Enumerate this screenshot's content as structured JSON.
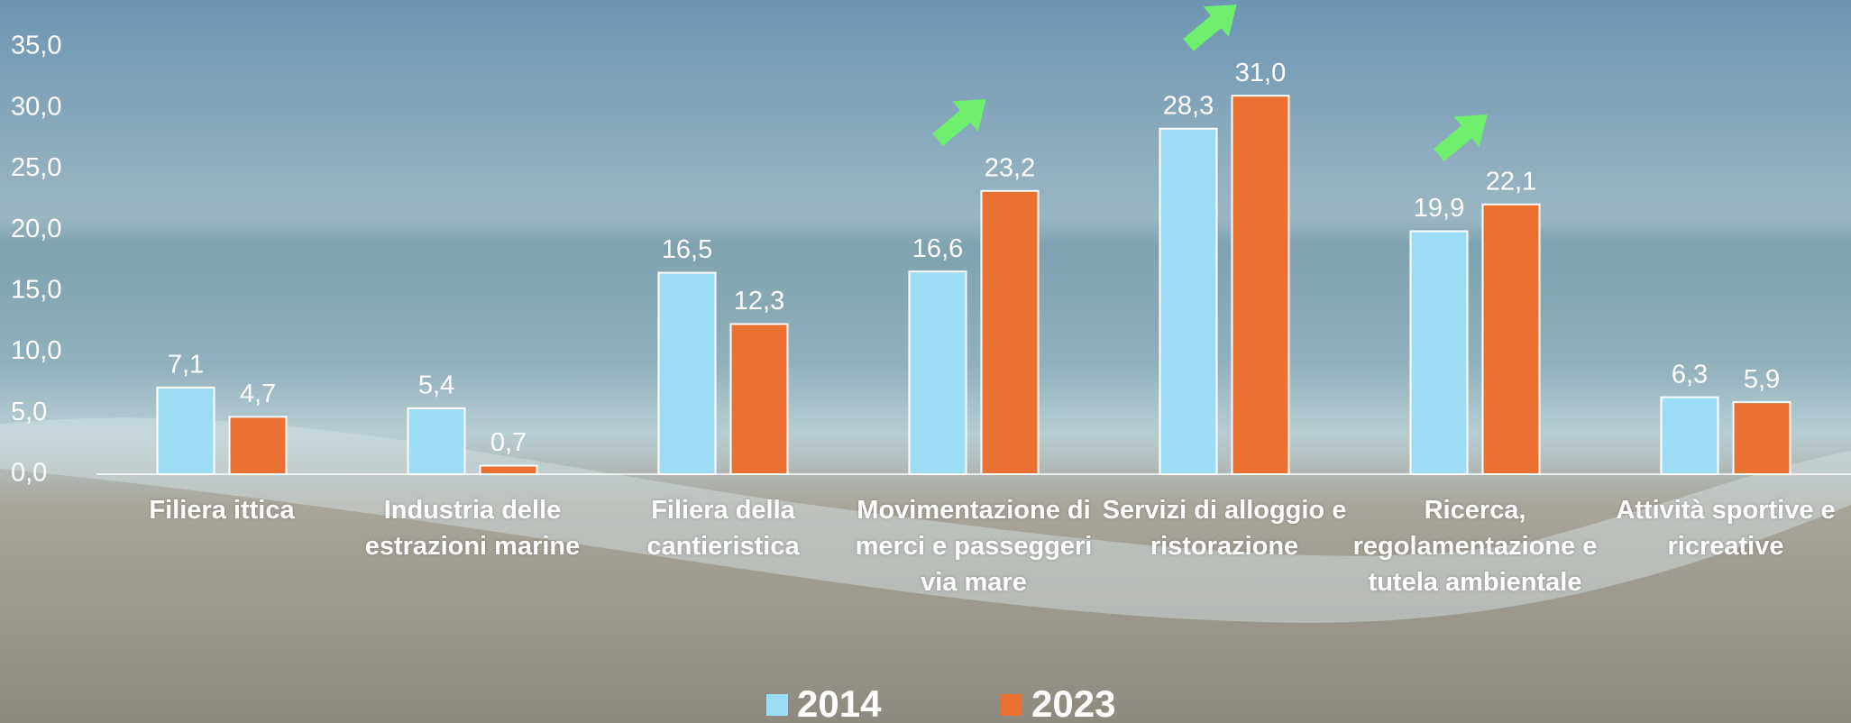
{
  "chart_data": {
    "type": "bar",
    "categories": [
      "Filiera ittica",
      "Industria delle estrazioni marine",
      "Filiera della cantieristica",
      "Movimentazione di merci e passeggeri via mare",
      "Servizi di alloggio e ristorazione",
      "Ricerca, regolamentazione e tutela ambientale",
      "Attività sportive e ricreative"
    ],
    "series": [
      {
        "name": "2014",
        "color": "#9ddcf5",
        "values": [
          7.1,
          5.4,
          16.5,
          16.6,
          28.3,
          19.9,
          6.3
        ],
        "value_labels": [
          "7,1",
          "5,4",
          "16,5",
          "16,6",
          "28,3",
          "19,9",
          "6,3"
        ]
      },
      {
        "name": "2023",
        "color": "#eb7132",
        "values": [
          4.7,
          0.7,
          12.3,
          23.2,
          31.0,
          22.1,
          5.9
        ],
        "value_labels": [
          "4,7",
          "0,7",
          "12,3",
          "23,2",
          "31,0",
          "22,1",
          "5,9"
        ]
      }
    ],
    "ylim": [
      0,
      35
    ],
    "yticks": [
      {
        "value": 0,
        "label": "0,0"
      },
      {
        "value": 5,
        "label": "5,0"
      },
      {
        "value": 10,
        "label": "10,0"
      },
      {
        "value": 15,
        "label": "15,0"
      },
      {
        "value": 20,
        "label": "20,0"
      },
      {
        "value": 25,
        "label": "25,0"
      },
      {
        "value": 30,
        "label": "30,0"
      },
      {
        "value": 35,
        "label": "35,0"
      }
    ],
    "legend": "bottom"
  }
}
